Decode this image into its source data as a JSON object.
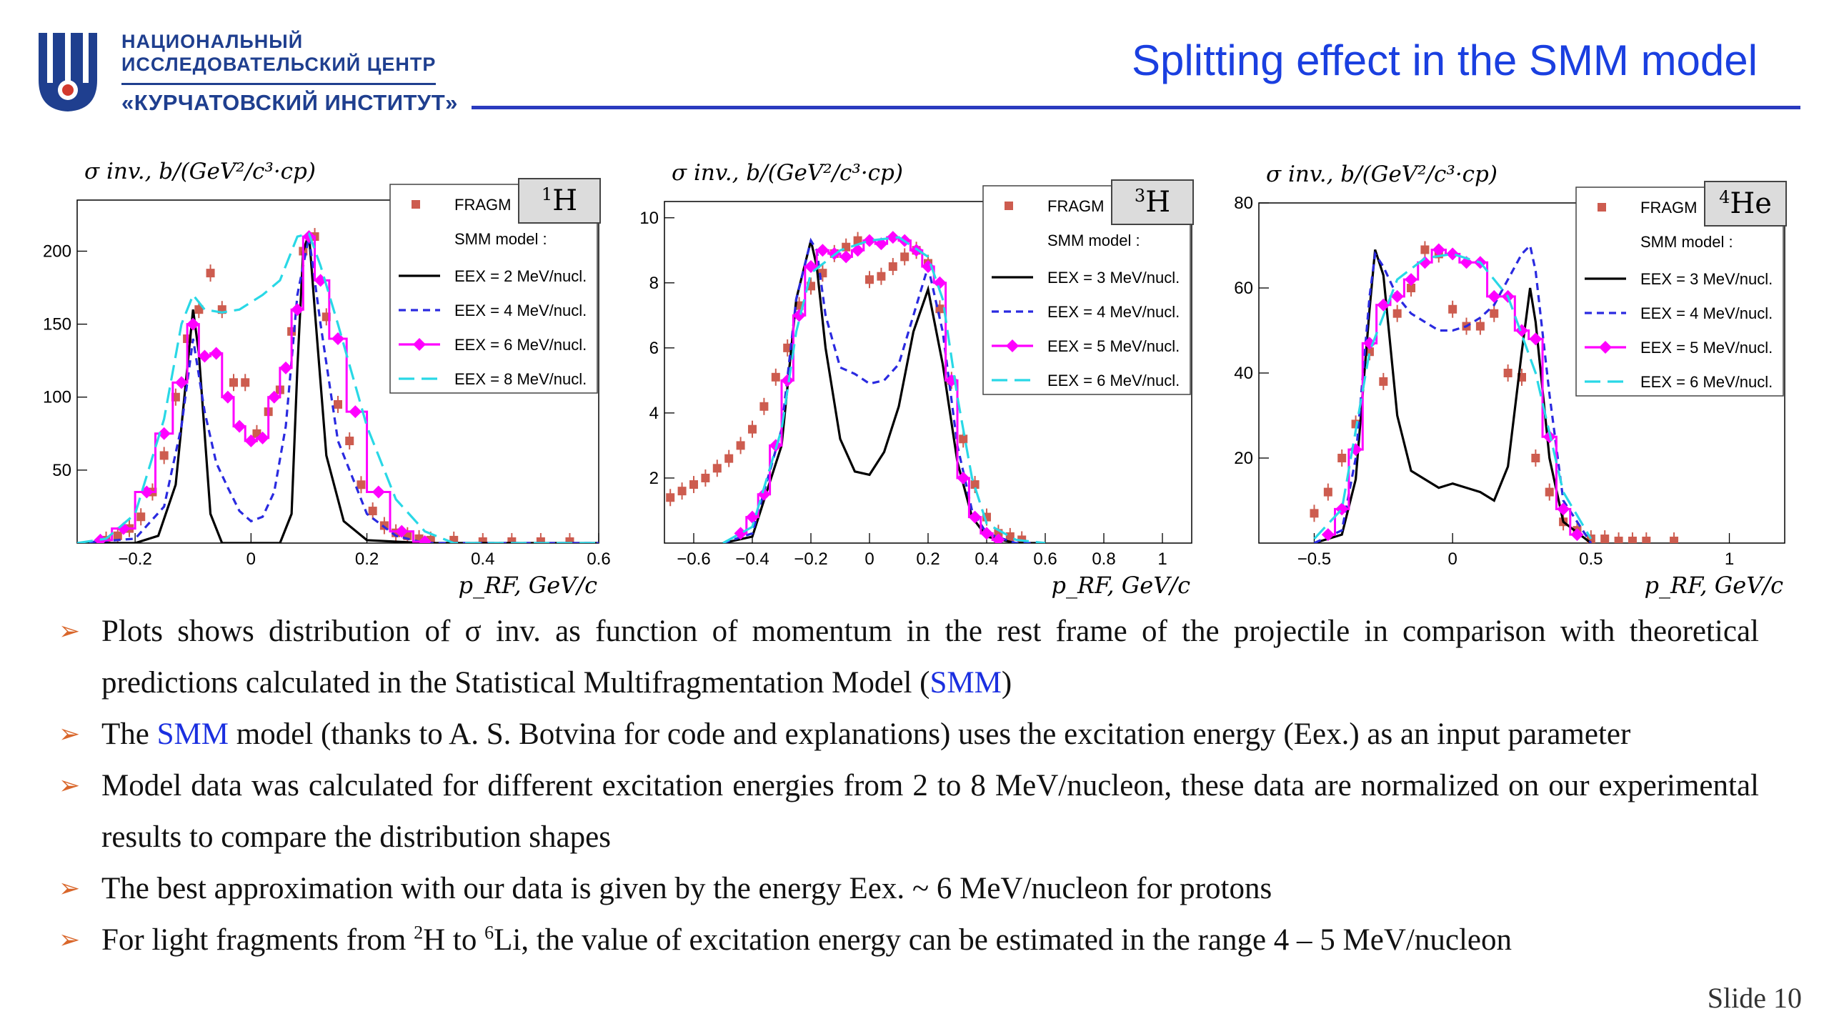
{
  "header": {
    "logo_line1": "НАЦИОНАЛЬНЫЙ",
    "logo_line2": "ИССЛЕДОВАТЕЛЬСКИЙ ЦЕНТР",
    "logo_line3": "«КУРЧАТОВСКИЙ ИНСТИТУТ»",
    "title": "Splitting effect in the SMM model",
    "accent": "#1a3fe0",
    "logo_color": "#1f3f8f"
  },
  "bullets": {
    "b1_part1": "Plots shows distribution of σ inv. as function of momentum in the rest frame of the projectile in comparison with theoretical predictions calculated in the Statistical Multifragmentation Model (",
    "b1_link": "SMM",
    "b1_part2": ")",
    "b2_part1": "The ",
    "b2_link": "SMM",
    "b2_part2": " model (thanks to A. S. Botvina for code and explanations) uses the excitation energy (Eex.) as an input parameter",
    "b3": "Model data was calculated for different excitation energies from 2 to 8 MeV/nucleon, these data are normalized on our experimental results to compare the distribution shapes",
    "b4": "The best approximation with our data is given by the energy Eex. ~ 6 MeV/nucleon for protons",
    "b5_part1": "For light fragments from ",
    "b5_sup1": "2",
    "b5_part2": "H to ",
    "b5_sup2": "6",
    "b5_part3": "Li, the value of excitation energy can be estimated in the range 4 – 5 MeV/nucleon"
  },
  "footer": {
    "slide_number": "Slide 10"
  },
  "chart_data": [
    {
      "type": "scatter",
      "panel_label_mass": "1",
      "panel_label_element": "H",
      "ylabel": "σ inv., b/(GeV²/c³·cp)",
      "xlabel": "p_RF, GeV/c",
      "xlim": [
        -0.3,
        0.6
      ],
      "ylim": [
        0,
        235
      ],
      "xticks": [
        -0.2,
        0,
        0.2,
        0.4,
        0.6
      ],
      "xtick_labels": [
        "−0.2",
        "0",
        "0.2",
        "0.4",
        "0.6"
      ],
      "yticks": [
        50,
        100,
        150,
        200
      ],
      "ytick_labels": [
        "50",
        "100",
        "150",
        "200"
      ],
      "legend_title": "SMM model :",
      "legend_position": "top-right",
      "series": [
        {
          "name": "FRAGM",
          "kind": "markers",
          "color": "#cd5c4f",
          "x": [
            -0.25,
            -0.23,
            -0.21,
            -0.19,
            -0.17,
            -0.15,
            -0.13,
            -0.11,
            -0.09,
            -0.07,
            -0.05,
            -0.03,
            -0.01,
            0.01,
            0.03,
            0.05,
            0.07,
            0.09,
            0.11,
            0.13,
            0.15,
            0.17,
            0.19,
            0.21,
            0.23,
            0.25,
            0.27,
            0.29,
            0.31,
            0.35,
            0.4,
            0.45,
            0.5,
            0.55
          ],
          "y": [
            2,
            5,
            10,
            18,
            35,
            60,
            100,
            140,
            160,
            185,
            160,
            110,
            110,
            75,
            90,
            105,
            145,
            200,
            210,
            155,
            95,
            70,
            40,
            22,
            12,
            7,
            5,
            3,
            2,
            2,
            1,
            1,
            1,
            1
          ]
        },
        {
          "name": "EEX = 2 MeV/nucl.",
          "kind": "line",
          "color": "#000000",
          "dash": "solid",
          "x": [
            -0.3,
            -0.2,
            -0.16,
            -0.13,
            -0.11,
            -0.1,
            -0.09,
            -0.07,
            -0.05,
            0,
            0.05,
            0.07,
            0.08,
            0.09,
            0.1,
            0.11,
            0.13,
            0.16,
            0.2,
            0.3,
            0.6
          ],
          "y": [
            0,
            0,
            5,
            40,
            120,
            160,
            130,
            20,
            0,
            0,
            0,
            20,
            120,
            200,
            212,
            160,
            60,
            15,
            2,
            0,
            0
          ]
        },
        {
          "name": "EEX = 4 MeV/nucl.",
          "kind": "line",
          "color": "#2a2ae0",
          "dash": "dash",
          "x": [
            -0.3,
            -0.2,
            -0.15,
            -0.12,
            -0.1,
            -0.08,
            -0.06,
            -0.04,
            -0.02,
            0,
            0.02,
            0.04,
            0.06,
            0.08,
            0.1,
            0.12,
            0.15,
            0.2,
            0.25,
            0.3,
            0.6
          ],
          "y": [
            0,
            3,
            25,
            80,
            140,
            90,
            55,
            38,
            22,
            15,
            18,
            35,
            80,
            170,
            210,
            150,
            70,
            20,
            5,
            0,
            0
          ]
        },
        {
          "name": "EEX = 6 MeV/nucl.",
          "kind": "markersline",
          "color": "#ff00ff",
          "x": [
            -0.26,
            -0.22,
            -0.18,
            -0.15,
            -0.12,
            -0.1,
            -0.08,
            -0.06,
            -0.04,
            -0.02,
            0,
            0.02,
            0.04,
            0.06,
            0.08,
            0.1,
            0.12,
            0.15,
            0.18,
            0.22,
            0.26,
            0.3
          ],
          "y": [
            2,
            10,
            35,
            75,
            110,
            150,
            128,
            130,
            100,
            80,
            70,
            72,
            100,
            120,
            160,
            210,
            180,
            140,
            90,
            35,
            8,
            1
          ]
        },
        {
          "name": "EEX = 8 MeV/nucl.",
          "kind": "line",
          "color": "#29d8e6",
          "dash": "longdash",
          "x": [
            -0.3,
            -0.25,
            -0.2,
            -0.15,
            -0.12,
            -0.1,
            -0.08,
            -0.05,
            -0.02,
            0,
            0.02,
            0.05,
            0.08,
            0.1,
            0.12,
            0.15,
            0.2,
            0.25,
            0.3,
            0.35,
            0.6
          ],
          "y": [
            0,
            3,
            20,
            85,
            150,
            170,
            160,
            158,
            160,
            165,
            170,
            180,
            210,
            212,
            190,
            150,
            80,
            30,
            8,
            0,
            0
          ]
        }
      ]
    },
    {
      "type": "scatter",
      "panel_label_mass": "3",
      "panel_label_element": "H",
      "ylabel": "σ inv., b/(GeV²/c³·cp)",
      "xlabel": "p_RF, GeV/c",
      "xlim": [
        -0.7,
        1.1
      ],
      "ylim": [
        0,
        10.5
      ],
      "xticks": [
        -0.6,
        -0.4,
        -0.2,
        0,
        0.2,
        0.4,
        0.6,
        0.8,
        1
      ],
      "xtick_labels": [
        "−0.6",
        "−0.4",
        "−0.2",
        "0",
        "0.2",
        "0.4",
        "0.6",
        "0.8",
        "1"
      ],
      "yticks": [
        2,
        4,
        6,
        8,
        10
      ],
      "ytick_labels": [
        "2",
        "4",
        "6",
        "8",
        "10"
      ],
      "legend_title": "SMM model :",
      "legend_position": "top-right",
      "series": [
        {
          "name": "FRAGM",
          "kind": "markers",
          "color": "#cd5c4f",
          "x": [
            -0.68,
            -0.64,
            -0.6,
            -0.56,
            -0.52,
            -0.48,
            -0.44,
            -0.4,
            -0.36,
            -0.32,
            -0.28,
            -0.24,
            -0.2,
            -0.16,
            -0.12,
            -0.08,
            -0.04,
            0,
            0.04,
            0.08,
            0.12,
            0.16,
            0.2,
            0.24,
            0.28,
            0.32,
            0.36,
            0.4,
            0.44,
            0.48,
            0.52
          ],
          "y": [
            1.4,
            1.6,
            1.8,
            2.0,
            2.3,
            2.6,
            3.0,
            3.5,
            4.2,
            5.1,
            6.0,
            7.3,
            7.9,
            8.3,
            8.9,
            9.1,
            9.3,
            8.1,
            8.2,
            8.5,
            8.8,
            9.0,
            8.6,
            7.2,
            5.0,
            3.2,
            1.8,
            0.8,
            0.3,
            0.2,
            0.1
          ]
        },
        {
          "name": "EEX = 3 MeV/nucl.",
          "kind": "line",
          "color": "#000000",
          "dash": "solid",
          "x": [
            -0.5,
            -0.4,
            -0.3,
            -0.25,
            -0.2,
            -0.18,
            -0.15,
            -0.1,
            -0.05,
            0,
            0.05,
            0.1,
            0.15,
            0.2,
            0.25,
            0.3,
            0.35,
            0.4,
            0.5,
            0.6
          ],
          "y": [
            0,
            0.2,
            3,
            7.5,
            9.3,
            8.5,
            6,
            3.2,
            2.2,
            2.1,
            2.8,
            4.2,
            6.5,
            7.8,
            5.5,
            2.5,
            0.8,
            0.2,
            0,
            0
          ]
        },
        {
          "name": "EEX = 4 MeV/nucl.",
          "kind": "line",
          "color": "#2a2ae0",
          "dash": "dash",
          "x": [
            -0.5,
            -0.4,
            -0.3,
            -0.25,
            -0.2,
            -0.18,
            -0.15,
            -0.1,
            -0.05,
            0,
            0.05,
            0.1,
            0.15,
            0.2,
            0.25,
            0.3,
            0.35,
            0.4,
            0.5,
            0.6
          ],
          "y": [
            0,
            0.3,
            3.5,
            7.5,
            9.3,
            9,
            7,
            5.4,
            5.2,
            4.9,
            5.0,
            5.5,
            7,
            8.5,
            6.5,
            3,
            1,
            0.3,
            0,
            0
          ]
        },
        {
          "name": "EEX = 5 MeV/nucl.",
          "kind": "markersline",
          "color": "#ff00ff",
          "x": [
            -0.44,
            -0.4,
            -0.36,
            -0.32,
            -0.28,
            -0.24,
            -0.2,
            -0.16,
            -0.12,
            -0.08,
            -0.04,
            0,
            0.04,
            0.08,
            0.12,
            0.16,
            0.2,
            0.24,
            0.28,
            0.32,
            0.36,
            0.4,
            0.44
          ],
          "y": [
            0.3,
            0.8,
            1.5,
            3.0,
            5.0,
            7.0,
            8.5,
            9.0,
            8.9,
            8.8,
            9.0,
            9.3,
            9.2,
            9.4,
            9.3,
            9.0,
            8.5,
            8.0,
            5.0,
            2.0,
            0.8,
            0.3,
            0.1
          ]
        },
        {
          "name": "EEX = 6 MeV/nucl.",
          "kind": "line",
          "color": "#29d8e6",
          "dash": "longdash",
          "x": [
            -0.5,
            -0.4,
            -0.3,
            -0.25,
            -0.2,
            -0.1,
            0,
            0.1,
            0.2,
            0.25,
            0.3,
            0.35,
            0.4,
            0.5,
            0.6
          ],
          "y": [
            0,
            0.5,
            3.5,
            6.5,
            8.3,
            9,
            9.3,
            9.4,
            8.8,
            7.5,
            4.5,
            2,
            0.6,
            0.1,
            0
          ]
        }
      ]
    },
    {
      "type": "scatter",
      "panel_label_mass": "4",
      "panel_label_element": "He",
      "ylabel": "σ inv., b/(GeV²/c³·cp)",
      "xlabel": "p_RF, GeV/c",
      "xlim": [
        -0.7,
        1.2
      ],
      "ylim": [
        0,
        80
      ],
      "xticks": [
        -0.5,
        0,
        0.5,
        1
      ],
      "xtick_labels": [
        "−0.5",
        "0",
        "0.5",
        "1"
      ],
      "yticks": [
        20,
        40,
        60,
        80
      ],
      "ytick_labels": [
        "20",
        "40",
        "60",
        "80"
      ],
      "legend_title": "SMM model :",
      "legend_position": "top-right",
      "series": [
        {
          "name": "FRAGM",
          "kind": "markers",
          "color": "#cd5c4f",
          "x": [
            -0.5,
            -0.45,
            -0.4,
            -0.35,
            -0.3,
            -0.25,
            -0.2,
            -0.15,
            -0.1,
            -0.05,
            0,
            0.05,
            0.1,
            0.15,
            0.2,
            0.25,
            0.3,
            0.35,
            0.4,
            0.45,
            0.5,
            0.55,
            0.6,
            0.65,
            0.7,
            0.8
          ],
          "y": [
            7,
            12,
            20,
            28,
            45,
            38,
            54,
            60,
            69,
            68,
            55,
            51,
            51,
            54,
            40,
            39,
            20,
            12,
            5,
            3,
            1,
            1,
            0.5,
            0.5,
            0.5,
            0.5
          ]
        },
        {
          "name": "EEX = 3 MeV/nucl.",
          "kind": "line",
          "color": "#000000",
          "dash": "solid",
          "x": [
            -0.5,
            -0.4,
            -0.35,
            -0.3,
            -0.28,
            -0.25,
            -0.2,
            -0.15,
            -0.1,
            -0.05,
            0,
            0.05,
            0.1,
            0.15,
            0.2,
            0.25,
            0.28,
            0.3,
            0.35,
            0.4,
            0.5
          ],
          "y": [
            0,
            2,
            15,
            55,
            69,
            63,
            30,
            17,
            15,
            13,
            14,
            13,
            12,
            10,
            18,
            45,
            60,
            52,
            20,
            5,
            0
          ]
        },
        {
          "name": "EEX = 4 MeV/nucl.",
          "kind": "line",
          "color": "#2a2ae0",
          "dash": "dash",
          "x": [
            -0.5,
            -0.4,
            -0.35,
            -0.3,
            -0.28,
            -0.25,
            -0.2,
            -0.15,
            -0.1,
            -0.05,
            0,
            0.05,
            0.1,
            0.15,
            0.2,
            0.25,
            0.28,
            0.3,
            0.35,
            0.4,
            0.5
          ],
          "y": [
            0,
            3,
            20,
            58,
            68,
            65,
            58,
            54,
            52,
            50,
            50,
            51,
            53,
            56,
            62,
            68,
            70,
            64,
            35,
            10,
            0
          ]
        },
        {
          "name": "EEX = 5 MeV/nucl.",
          "kind": "markersline",
          "color": "#ff00ff",
          "x": [
            -0.45,
            -0.4,
            -0.35,
            -0.3,
            -0.25,
            -0.2,
            -0.15,
            -0.1,
            -0.05,
            0,
            0.05,
            0.1,
            0.15,
            0.2,
            0.25,
            0.3,
            0.35,
            0.4,
            0.45
          ],
          "y": [
            2,
            8,
            22,
            47,
            56,
            58,
            62,
            66,
            69,
            68,
            66,
            66,
            58,
            58,
            50,
            48,
            25,
            8,
            2
          ]
        },
        {
          "name": "EEX = 6 MeV/nucl.",
          "kind": "line",
          "color": "#29d8e6",
          "dash": "longdash",
          "x": [
            -0.5,
            -0.4,
            -0.3,
            -0.2,
            -0.1,
            0,
            0.1,
            0.2,
            0.3,
            0.4,
            0.5
          ],
          "y": [
            1,
            8,
            45,
            62,
            67,
            68,
            66,
            58,
            40,
            12,
            1
          ]
        }
      ]
    }
  ]
}
